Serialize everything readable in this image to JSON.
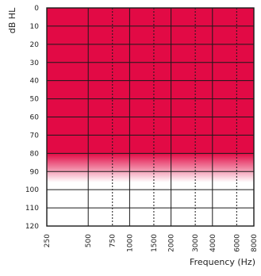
{
  "chart_data": {
    "type": "area",
    "title": "",
    "ylabel": "dB HL",
    "xlabel": "Frequency (Hz)",
    "y_axis": {
      "inverted": true,
      "range": [
        0,
        120
      ],
      "ticks": [
        0,
        10,
        20,
        30,
        40,
        50,
        60,
        70,
        80,
        90,
        100,
        110,
        120
      ]
    },
    "x_axis": {
      "scale": "log",
      "ticks": [
        "250",
        "500",
        "750",
        "1000",
        "1500",
        "2000",
        "3000",
        "4000",
        "6000",
        "8000"
      ],
      "dashed_gridlines": [
        "750",
        "1500",
        "3000",
        "6000"
      ]
    },
    "grid": true,
    "filled_region": {
      "from_db": 0,
      "solid_to_db": 80,
      "fade_to_db": 96,
      "color": "#e20a45"
    },
    "frame_color": "#1a1a1a"
  }
}
